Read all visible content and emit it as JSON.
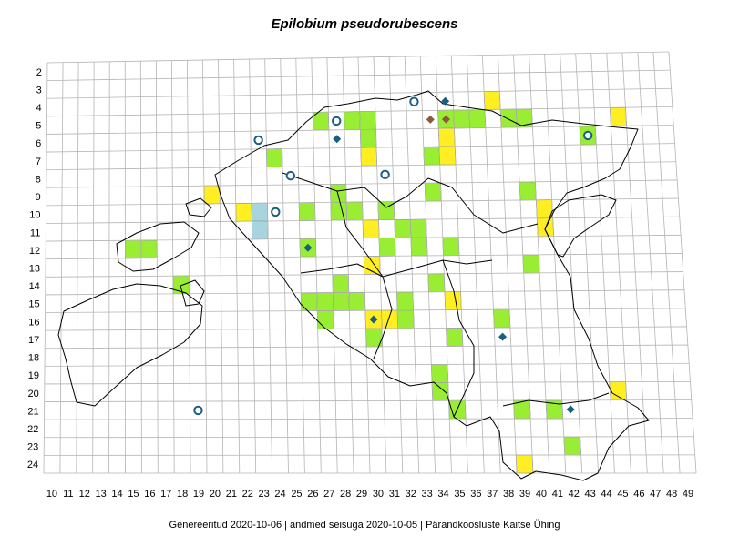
{
  "title": "Epilobium pseudorubescens",
  "footer": {
    "generated": "Genereeritud 2020-10-06",
    "data_state": "andmed seisuga 2020-10-05",
    "organization": "Pärandkoosluste Kaitse Ühing",
    "separator": "|"
  },
  "grid": {
    "col_labels": [
      10,
      11,
      12,
      13,
      14,
      15,
      16,
      17,
      18,
      19,
      20,
      21,
      22,
      23,
      24,
      25,
      26,
      27,
      28,
      29,
      30,
      31,
      32,
      33,
      34,
      35,
      36,
      37,
      38,
      39,
      40,
      41,
      42,
      43,
      44,
      45,
      46,
      47,
      48,
      49
    ],
    "row_labels": [
      2,
      3,
      4,
      5,
      6,
      7,
      8,
      9,
      10,
      11,
      12,
      13,
      14,
      15,
      16,
      17,
      18,
      19,
      20,
      21,
      22,
      23,
      24
    ]
  },
  "colors": {
    "green": "#99ee33",
    "yellow": "#ffee22",
    "lightblue": "#a8d4e0",
    "diamond_blue": "#1a5f82",
    "diamond_brown": "#8b5a3c",
    "circle_blue": "#1a5f82",
    "grid_line": "#b4b4b4",
    "border": "#000000"
  },
  "cells": [
    {
      "col": 27,
      "row": 5,
      "color": "green"
    },
    {
      "col": 29,
      "row": 5,
      "color": "green"
    },
    {
      "col": 30,
      "row": 5,
      "color": "green"
    },
    {
      "col": 35,
      "row": 5,
      "color": "green"
    },
    {
      "col": 36,
      "row": 5,
      "color": "green"
    },
    {
      "col": 37,
      "row": 5,
      "color": "green"
    },
    {
      "col": 39,
      "row": 5,
      "color": "green"
    },
    {
      "col": 40,
      "row": 5,
      "color": "green"
    },
    {
      "col": 44,
      "row": 6,
      "color": "green"
    },
    {
      "col": 30,
      "row": 6,
      "color": "green"
    },
    {
      "col": 34,
      "row": 7,
      "color": "green"
    },
    {
      "col": 24,
      "row": 7,
      "color": "green"
    },
    {
      "col": 40,
      "row": 9,
      "color": "green"
    },
    {
      "col": 34,
      "row": 9,
      "color": "green"
    },
    {
      "col": 28,
      "row": 9,
      "color": "green"
    },
    {
      "col": 26,
      "row": 10,
      "color": "green"
    },
    {
      "col": 28,
      "row": 10,
      "color": "green"
    },
    {
      "col": 29,
      "row": 10,
      "color": "green"
    },
    {
      "col": 31,
      "row": 10,
      "color": "green"
    },
    {
      "col": 32,
      "row": 11,
      "color": "green"
    },
    {
      "col": 33,
      "row": 12,
      "color": "green"
    },
    {
      "col": 33,
      "row": 11,
      "color": "green"
    },
    {
      "col": 31,
      "row": 12,
      "color": "green"
    },
    {
      "col": 15,
      "row": 12,
      "color": "green"
    },
    {
      "col": 16,
      "row": 12,
      "color": "green"
    },
    {
      "col": 26,
      "row": 12,
      "color": "green"
    },
    {
      "col": 35,
      "row": 12,
      "color": "green"
    },
    {
      "col": 40,
      "row": 13,
      "color": "green"
    },
    {
      "col": 18,
      "row": 14,
      "color": "green"
    },
    {
      "col": 28,
      "row": 14,
      "color": "green"
    },
    {
      "col": 34,
      "row": 14,
      "color": "green"
    },
    {
      "col": 26,
      "row": 15,
      "color": "green"
    },
    {
      "col": 27,
      "row": 15,
      "color": "green"
    },
    {
      "col": 28,
      "row": 15,
      "color": "green"
    },
    {
      "col": 29,
      "row": 15,
      "color": "green"
    },
    {
      "col": 32,
      "row": 15,
      "color": "green"
    },
    {
      "col": 27,
      "row": 16,
      "color": "green"
    },
    {
      "col": 32,
      "row": 16,
      "color": "green"
    },
    {
      "col": 38,
      "row": 16,
      "color": "green"
    },
    {
      "col": 35,
      "row": 17,
      "color": "green"
    },
    {
      "col": 30,
      "row": 17,
      "color": "green"
    },
    {
      "col": 34,
      "row": 19,
      "color": "green"
    },
    {
      "col": 34,
      "row": 20,
      "color": "green"
    },
    {
      "col": 35,
      "row": 21,
      "color": "green"
    },
    {
      "col": 39,
      "row": 21,
      "color": "green"
    },
    {
      "col": 41,
      "row": 21,
      "color": "green"
    },
    {
      "col": 42,
      "row": 23,
      "color": "green"
    },
    {
      "col": 38,
      "row": 4,
      "color": "yellow"
    },
    {
      "col": 46,
      "row": 5,
      "color": "yellow"
    },
    {
      "col": 35,
      "row": 6,
      "color": "yellow"
    },
    {
      "col": 30,
      "row": 7,
      "color": "yellow"
    },
    {
      "col": 35,
      "row": 7,
      "color": "yellow"
    },
    {
      "col": 20,
      "row": 9,
      "color": "yellow"
    },
    {
      "col": 22,
      "row": 10,
      "color": "yellow"
    },
    {
      "col": 41,
      "row": 10,
      "color": "yellow"
    },
    {
      "col": 41,
      "row": 11,
      "color": "yellow"
    },
    {
      "col": 30,
      "row": 11,
      "color": "yellow"
    },
    {
      "col": 30,
      "row": 13,
      "color": "yellow"
    },
    {
      "col": 35,
      "row": 15,
      "color": "yellow"
    },
    {
      "col": 31,
      "row": 16,
      "color": "yellow"
    },
    {
      "col": 30,
      "row": 16,
      "color": "yellow"
    },
    {
      "col": 45,
      "row": 20,
      "color": "yellow"
    },
    {
      "col": 39,
      "row": 24,
      "color": "yellow"
    },
    {
      "col": 23,
      "row": 10,
      "color": "lightblue"
    },
    {
      "col": 23,
      "row": 11,
      "color": "lightblue"
    }
  ],
  "markers": [
    {
      "type": "diamond",
      "color": "diamond_blue",
      "col": 28,
      "row": 5
    },
    {
      "type": "diamond",
      "color": "diamond_blue",
      "col": 28,
      "row": 6
    },
    {
      "type": "diamond",
      "color": "diamond_blue",
      "col": 33,
      "row": 4
    },
    {
      "type": "diamond",
      "color": "diamond_blue",
      "col": 35,
      "row": 4
    },
    {
      "type": "diamond",
      "color": "diamond_brown",
      "col": 34,
      "row": 5
    },
    {
      "type": "diamond",
      "color": "diamond_brown",
      "col": 35,
      "row": 5
    },
    {
      "type": "diamond",
      "color": "diamond_blue",
      "col": 26,
      "row": 12
    },
    {
      "type": "diamond",
      "color": "diamond_blue",
      "col": 30,
      "row": 16
    },
    {
      "type": "diamond",
      "color": "diamond_blue",
      "col": 38,
      "row": 17
    },
    {
      "type": "diamond",
      "color": "diamond_blue",
      "col": 42,
      "row": 21
    },
    {
      "type": "circle",
      "color": "circle_blue",
      "col": 28,
      "row": 5
    },
    {
      "type": "circle",
      "color": "circle_blue",
      "col": 33,
      "row": 4
    },
    {
      "type": "circle",
      "color": "circle_blue",
      "col": 23,
      "row": 6
    },
    {
      "type": "circle",
      "color": "circle_blue",
      "col": 44,
      "row": 6
    },
    {
      "type": "circle",
      "color": "circle_blue",
      "col": 25,
      "row": 8
    },
    {
      "type": "circle",
      "color": "circle_blue",
      "col": 31,
      "row": 8
    },
    {
      "type": "circle",
      "color": "circle_blue",
      "col": 24,
      "row": 10
    },
    {
      "type": "circle",
      "color": "circle_blue",
      "col": 19,
      "row": 21
    }
  ]
}
